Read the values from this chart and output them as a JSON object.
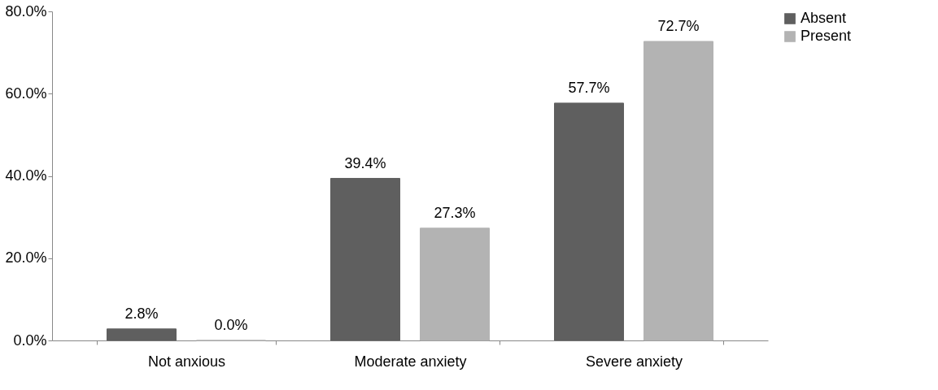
{
  "chart_data": {
    "type": "bar",
    "categories": [
      "Not anxious",
      "Moderate anxiety",
      "Severe anxiety"
    ],
    "series": [
      {
        "name": "Absent",
        "color": "#5f5f5f",
        "values": [
          2.8,
          39.4,
          57.7
        ],
        "value_labels": [
          "2.8%",
          "39.4%",
          "57.7%"
        ]
      },
      {
        "name": "Present",
        "color": "#b3b3b3",
        "values": [
          0.0,
          27.3,
          72.7
        ],
        "value_labels": [
          "0.0%",
          "27.3%",
          "72.7%"
        ]
      }
    ],
    "ylim": [
      0,
      80
    ],
    "yticks": [
      {
        "value": 0,
        "label": "0.0%"
      },
      {
        "value": 20,
        "label": "20.0%"
      },
      {
        "value": 40,
        "label": "40.0%"
      },
      {
        "value": 60,
        "label": "60.0%"
      },
      {
        "value": 80,
        "label": "80.0%"
      }
    ],
    "legend": "right",
    "grid": false
  }
}
